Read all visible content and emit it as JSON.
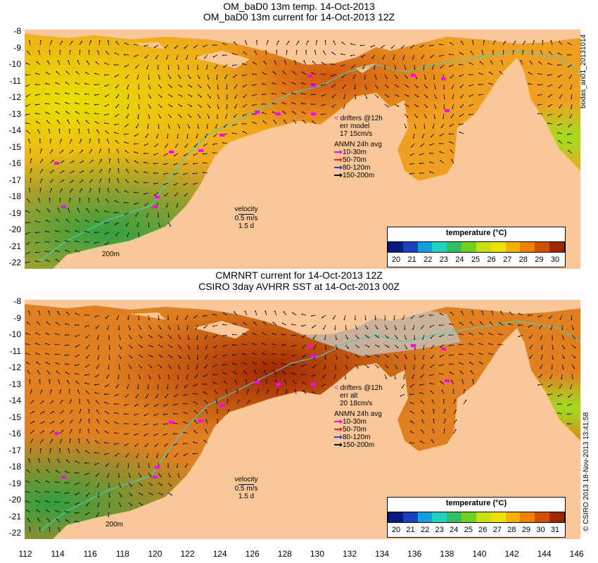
{
  "top_panel": {
    "title_line1": "OM_baD0 13m temp. 14-Oct-2013",
    "title_line2": "OM_baD0 13m current for 14-Oct-2013 12Z",
    "legend": {
      "drifters": "drifters @12h",
      "err_label": "err model",
      "err_value": "17 15cm/s",
      "anmn_title": "ANMN 24h avg",
      "depths": [
        "10-30m",
        "50-70m",
        "80-120m",
        "150-200m"
      ]
    },
    "velocity": {
      "label": "velocity",
      "speed": "0.5 m/s",
      "time": "1.5 d"
    },
    "contour_label": "200m",
    "colorbar": {
      "title": "temperature (°C)",
      "ticks": [
        "20",
        "21",
        "22",
        "23",
        "24",
        "25",
        "26",
        "27",
        "28",
        "29",
        "30"
      ]
    },
    "side_label": "bodas_an01_20131014"
  },
  "bottom_panel": {
    "title_line1": "CMRNRT current for 14-Oct-2013 12Z",
    "title_line2": "CSIRO 3day AVHRR SST at 14-Oct-2013 00Z",
    "legend": {
      "drifters": "drifters @12h",
      "err_label": "err alt",
      "err_value": "20 18cm/s",
      "anmn_title": "ANMN 24h avg",
      "depths": [
        "10-30m",
        "50-70m",
        "80-120m",
        "150-200m"
      ]
    },
    "velocity": {
      "label": "velocity",
      "speed": "0.5 m/s",
      "time": "1.5 d"
    },
    "contour_label": "200m",
    "colorbar": {
      "title": "temperature (°C)",
      "ticks": [
        "20",
        "21",
        "22",
        "23",
        "24",
        "25",
        "26",
        "27",
        "28",
        "29",
        "30",
        "31"
      ]
    },
    "side_label": "© CSIRO 2013  18-Nov-2013 13:41:58"
  },
  "axes": {
    "top_y": [
      "-8",
      "-9",
      "-10",
      "-11",
      "-12",
      "-13",
      "-14",
      "-15",
      "-16",
      "-17",
      "-18",
      "-19",
      "-20",
      "-21",
      "-22"
    ],
    "bottom_y": [
      "-8",
      "-9",
      "-10",
      "-11",
      "-12",
      "-13",
      "-14",
      "-15",
      "-16",
      "-17",
      "-18",
      "-19",
      "-20",
      "-21",
      "-22"
    ],
    "x": [
      "112",
      "114",
      "116",
      "118",
      "120",
      "122",
      "124",
      "126",
      "128",
      "130",
      "132",
      "134",
      "136",
      "138",
      "140",
      "142",
      "144",
      "146"
    ]
  },
  "colors": {
    "land": "#fac898",
    "coast_contour": "#40d0c8",
    "drifter": "#ff00ff",
    "anmn_10_30": "#ff00ff",
    "anmn_50_70": "#ff2020",
    "anmn_80_120": "#2040ff",
    "anmn_150_200": "#000000",
    "colorbar": [
      "#0a1a80",
      "#1a40c0",
      "#10a0e0",
      "#20d0c0",
      "#30c060",
      "#70d020",
      "#c8e010",
      "#f0e000",
      "#f8b000",
      "#f08000",
      "#d05000",
      "#a02800"
    ]
  }
}
